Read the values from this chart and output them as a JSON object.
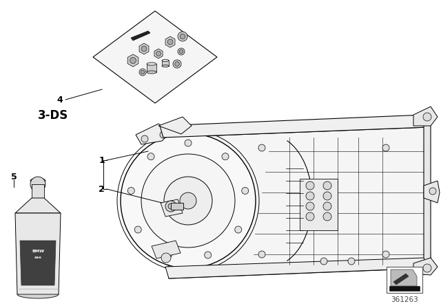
{
  "bg_color": "#ffffff",
  "label_3ds": "3-DS",
  "label_4": "4",
  "label_1": "1",
  "label_2": "2",
  "label_5": "5",
  "part_number": "361263",
  "lc": "#000000",
  "lc_gray": "#888888",
  "lc_mid": "#555555"
}
